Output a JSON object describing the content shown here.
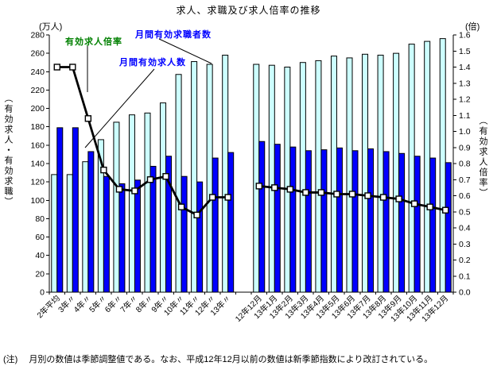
{
  "title": "求人、求職及び求人倍率の推移",
  "axes": {
    "left_unit": "(万人)",
    "right_unit": "(倍)",
    "left_axis_label": "（有効求人・有効求職）",
    "right_axis_label": "（有効求人倍率）"
  },
  "annotations": [
    {
      "text": "有効求人倍率",
      "color": "#008000"
    },
    {
      "text": "月間有効求職者数",
      "color": "#0000FF"
    },
    {
      "text": "月間有効求人数",
      "color": "#0000FF"
    }
  ],
  "note": {
    "label": "(注)",
    "text": "月別の数値は季節調整値である。なお、平成12年12月以前の数値は新季節指数により改訂されている。"
  },
  "chart_data": {
    "type": "bar",
    "title": "求人、求職及び求人倍率の推移",
    "categories": [
      "2年平均",
      "3年〃",
      "4年〃",
      "5年〃",
      "6年〃",
      "7年〃",
      "8年〃",
      "9年〃",
      "10年〃",
      "11年〃",
      "12年〃",
      "13年〃",
      "",
      "12年12月",
      "13年1月",
      "13年2月",
      "13年3月",
      "13年4月",
      "13年5月",
      "13年6月",
      "13年7月",
      "13年8月",
      "13年9月",
      "13年10月",
      "13年11月",
      "13年12月"
    ],
    "left_axis": {
      "label": "（有効求人・有効求職）",
      "unit": "(万人)",
      "min": 0,
      "max": 280,
      "step": 20
    },
    "right_axis": {
      "label": "（有効求人倍率）",
      "unit": "(倍)",
      "min": 0.0,
      "max": 1.6,
      "step": 0.1
    },
    "grid": false,
    "legend": "inline-annotations",
    "series": [
      {
        "name": "月間有効求職者数",
        "type": "bar",
        "axis": "left",
        "color": "#CCFFFF",
        "values": [
          128,
          128,
          142,
          166,
          185,
          193,
          195,
          206,
          237,
          251,
          248,
          258,
          null,
          248,
          247,
          245,
          250,
          252,
          257,
          255,
          259,
          258,
          260,
          270,
          273,
          276
        ]
      },
      {
        "name": "月間有効求人数",
        "type": "bar",
        "axis": "left",
        "color": "#0000FF",
        "values": [
          179,
          179,
          153,
          126,
          118,
          122,
          137,
          148,
          126,
          120,
          146,
          152,
          null,
          164,
          161,
          158,
          154,
          155,
          157,
          154,
          156,
          153,
          151,
          148,
          146,
          141
        ]
      },
      {
        "name": "有効求人倍率",
        "type": "line",
        "axis": "right",
        "color": "#000000",
        "marker": "white-square",
        "values": [
          1.4,
          1.4,
          1.08,
          0.76,
          0.64,
          0.63,
          0.7,
          0.72,
          0.53,
          0.48,
          0.59,
          0.59,
          null,
          0.66,
          0.65,
          0.64,
          0.62,
          0.62,
          0.61,
          0.61,
          0.6,
          0.59,
          0.58,
          0.55,
          0.53,
          0.51
        ]
      }
    ]
  }
}
